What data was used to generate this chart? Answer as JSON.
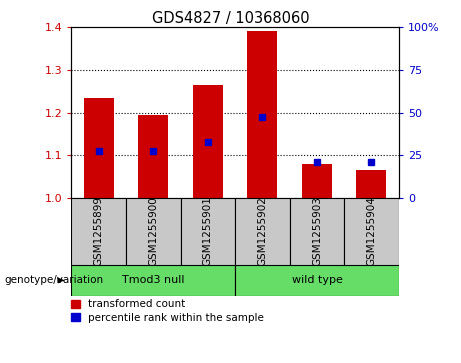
{
  "title": "GDS4827 / 10368060",
  "samples": [
    "GSM1255899",
    "GSM1255900",
    "GSM1255901",
    "GSM1255902",
    "GSM1255903",
    "GSM1255904"
  ],
  "red_bar_heights": [
    1.235,
    1.195,
    1.265,
    1.39,
    1.08,
    1.065
  ],
  "blue_square_y": [
    1.11,
    1.11,
    1.13,
    1.19,
    1.085,
    1.085
  ],
  "ylim_left": [
    1.0,
    1.4
  ],
  "ylim_right": [
    0,
    100
  ],
  "yticks_left": [
    1.0,
    1.1,
    1.2,
    1.3,
    1.4
  ],
  "yticks_right": [
    0,
    25,
    50,
    75,
    100
  ],
  "ytick_labels_right": [
    "0",
    "25",
    "50",
    "75",
    "100%"
  ],
  "bar_color": "#CC0000",
  "square_color": "#0000CC",
  "bar_width": 0.55,
  "left_tick_color": "#CC0000",
  "right_tick_color": "#0000CC",
  "legend_red_label": "transformed count",
  "legend_blue_label": "percentile rank within the sample",
  "group_label": "genotype/variation",
  "group1_label": "Tmod3 null",
  "group2_label": "wild type",
  "group_color": "#66DD66",
  "xtick_bg_color": "#C8C8C8",
  "grid_yticks": [
    1.1,
    1.2,
    1.3
  ]
}
